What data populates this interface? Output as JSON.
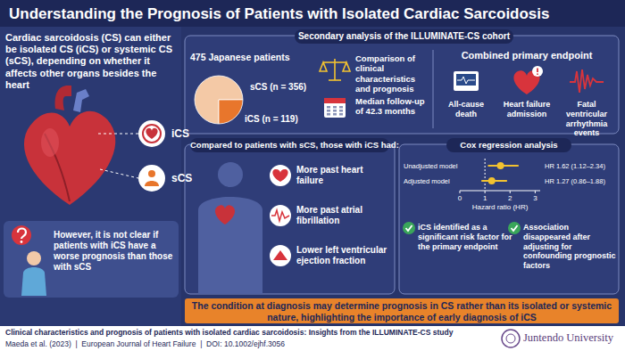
{
  "header": {
    "title": "Understanding the Prognosis of Patients with Isolated Cardiac Sarcoidosis"
  },
  "intro": {
    "text": "Cardiac sarcoidosis (CS) can either be isolated CS (iCS) or systemic CS (sCS), depending on whether it affects other organs besides the heart",
    "ics_label": "iCS",
    "scs_label": "sCS",
    "question": "However, it is not clear if patients with iCS have a worse prognosis than those with sCS"
  },
  "study": {
    "heading": "Secondary analysis of the ILLUMINATE-CS cohort",
    "comparison": "Comparison of clinical characteristics and prognosis",
    "follow_up": "Median follow-up of 42.3 months",
    "endpoint_title": "Combined primary endpoint",
    "endpoints": [
      "All-cause death",
      "Heart failure admission",
      "Fatal ventricular arrhythmia events"
    ]
  },
  "findings": {
    "heading": "Compared to patients with sCS, those with iCS had:",
    "items": [
      "More past heart failure",
      "More past atrial fibrillation",
      "Lower left ventricular ejection fraction"
    ]
  },
  "cox": {
    "points": [
      "iCS identified as a significant risk factor for the primary endpoint",
      "Association disappeared after adjusting for confounding prognostic factors"
    ]
  },
  "conclusion": "The condition at diagnosis may determine prognosis in CS rather than its isolated or systemic nature, highlighting the importance of early diagnosis of iCS",
  "footer": {
    "title": "Clinical characteristics and prognosis of patients with isolated cardiac sarcoidosis: Insights from the ILLUMINATE-CS study",
    "citation": "Maeda et al. (2023)  |  European Journal of Heart Failure  |  DOI: 10.1002/ejhf.3056",
    "institution": "Juntendo University"
  },
  "chart_data": [
    {
      "type": "pie",
      "title": "475 Japanese patients",
      "values": [
        356,
        119
      ],
      "value_labels": [
        "sCS (n = 356)",
        "iCS (n = 119)"
      ],
      "colors": [
        "#f4c9a6",
        "#e8762c"
      ]
    },
    {
      "type": "forest",
      "title": "Cox regression analysis",
      "categories": [
        "Unadjusted model",
        "Adjusted model"
      ],
      "values": [
        1.62,
        1.27
      ],
      "lower": [
        1.12,
        0.86
      ],
      "upper": [
        2.34,
        1.88
      ],
      "value_labels": [
        "HR 1.62 (1.12–2.34)",
        "HR 1.27 (0.86–1.88)"
      ],
      "xlabel": "Hazard ratio (HR)",
      "xlim": [
        0,
        3.2
      ],
      "xticks": [
        0,
        1,
        2,
        3
      ],
      "reference": 1,
      "color": "#f2c230"
    }
  ]
}
